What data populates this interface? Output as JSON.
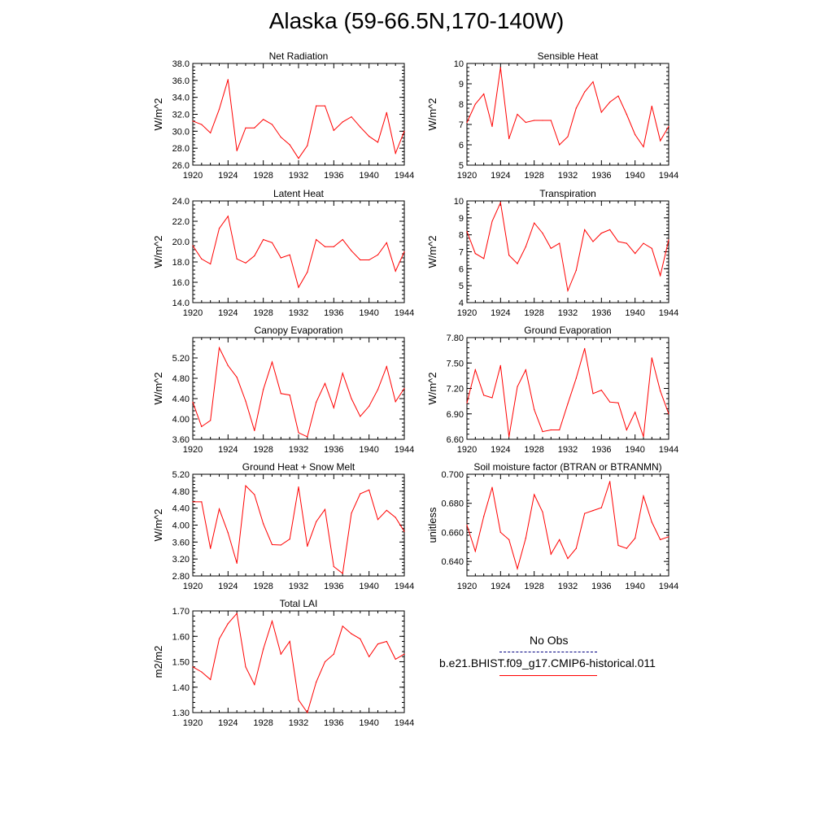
{
  "title": "Alaska (59-66.5N,170-140W)",
  "colors": {
    "series": "#ff0000",
    "obs": "#000080",
    "axis": "#000000"
  },
  "legend": {
    "obs_label": "No Obs",
    "model_label": "b.e21.BHIST.f09_g17.CMIP6-historical.011"
  },
  "chart_data": [
    {
      "type": "line",
      "title": "Net Radiation",
      "ylabel": "W/m^2",
      "xlim": [
        1920,
        1944
      ],
      "ylim": [
        26,
        38
      ],
      "xticks": [
        "1920",
        "1924",
        "1928",
        "1932",
        "1936",
        "1940",
        "1944"
      ],
      "yticks": [
        "26.0",
        "28.0",
        "30.0",
        "32.0",
        "34.0",
        "36.0",
        "38.0"
      ],
      "series": [
        {
          "x": [
            1920,
            1921,
            1922,
            1923,
            1924,
            1925,
            1926,
            1927,
            1928,
            1929,
            1930,
            1931,
            1932,
            1933,
            1934,
            1935,
            1936,
            1937,
            1938,
            1939,
            1940,
            1941,
            1942,
            1943,
            1944
          ],
          "values": [
            31.2,
            30.8,
            29.8,
            32.6,
            36.1,
            27.7,
            30.4,
            30.4,
            31.4,
            30.8,
            29.3,
            28.4,
            26.8,
            28.3,
            33.0,
            33.0,
            30.1,
            31.1,
            31.7,
            30.5,
            29.4,
            28.7,
            32.2,
            27.4,
            30.0
          ]
        }
      ]
    },
    {
      "type": "line",
      "title": "Sensible Heat",
      "ylabel": "W/m^2",
      "xlim": [
        1920,
        1944
      ],
      "ylim": [
        5,
        10
      ],
      "xticks": [
        "1920",
        "1924",
        "1928",
        "1932",
        "1936",
        "1940",
        "1944"
      ],
      "yticks": [
        "5",
        "6",
        "7",
        "8",
        "9",
        "10"
      ],
      "series": [
        {
          "x": [
            1920,
            1921,
            1922,
            1923,
            1924,
            1925,
            1926,
            1927,
            1928,
            1929,
            1930,
            1931,
            1932,
            1933,
            1934,
            1935,
            1936,
            1937,
            1938,
            1939,
            1940,
            1941,
            1942,
            1943,
            1944
          ],
          "values": [
            7.1,
            8.0,
            8.5,
            6.9,
            9.8,
            6.3,
            7.5,
            7.1,
            7.2,
            7.2,
            7.2,
            6.0,
            6.4,
            7.8,
            8.6,
            9.1,
            7.6,
            8.1,
            8.4,
            7.5,
            6.5,
            5.9,
            7.9,
            6.2,
            6.9
          ]
        }
      ]
    },
    {
      "type": "line",
      "title": "Latent Heat",
      "ylabel": "W/m^2",
      "xlim": [
        1920,
        1944
      ],
      "ylim": [
        14,
        24
      ],
      "xticks": [
        "1920",
        "1924",
        "1928",
        "1932",
        "1936",
        "1940",
        "1944"
      ],
      "yticks": [
        "14.0",
        "16.0",
        "18.0",
        "20.0",
        "22.0",
        "24.0"
      ],
      "series": [
        {
          "x": [
            1920,
            1921,
            1922,
            1923,
            1924,
            1925,
            1926,
            1927,
            1928,
            1929,
            1930,
            1931,
            1932,
            1933,
            1934,
            1935,
            1936,
            1937,
            1938,
            1939,
            1940,
            1941,
            1942,
            1943,
            1944
          ],
          "values": [
            19.6,
            18.3,
            17.8,
            21.3,
            22.5,
            18.3,
            17.9,
            18.6,
            20.2,
            19.9,
            18.4,
            18.7,
            15.5,
            17.0,
            20.2,
            19.5,
            19.5,
            20.2,
            19.1,
            18.2,
            18.2,
            18.7,
            19.9,
            17.1,
            19.0
          ]
        }
      ]
    },
    {
      "type": "line",
      "title": "Transpiration",
      "ylabel": "W/m^2",
      "xlim": [
        1920,
        1944
      ],
      "ylim": [
        4,
        10
      ],
      "xticks": [
        "1920",
        "1924",
        "1928",
        "1932",
        "1936",
        "1940",
        "1944"
      ],
      "yticks": [
        "4",
        "5",
        "6",
        "7",
        "8",
        "9",
        "10"
      ],
      "series": [
        {
          "x": [
            1920,
            1921,
            1922,
            1923,
            1924,
            1925,
            1926,
            1927,
            1928,
            1929,
            1930,
            1931,
            1932,
            1933,
            1934,
            1935,
            1936,
            1937,
            1938,
            1939,
            1940,
            1941,
            1942,
            1943,
            1944
          ],
          "values": [
            8.2,
            6.9,
            6.6,
            8.8,
            9.9,
            6.8,
            6.3,
            7.3,
            8.7,
            8.1,
            7.2,
            7.5,
            4.7,
            5.9,
            8.3,
            7.6,
            8.1,
            8.3,
            7.6,
            7.5,
            6.9,
            7.5,
            7.2,
            5.6,
            7.7
          ]
        }
      ]
    },
    {
      "type": "line",
      "title": "Canopy Evaporation",
      "ylabel": "W/m^2",
      "xlim": [
        1920,
        1944
      ],
      "ylim": [
        3.6,
        5.6
      ],
      "xticks": [
        "1920",
        "1924",
        "1928",
        "1932",
        "1936",
        "1940",
        "1944"
      ],
      "yticks": [
        "3.60",
        "4.00",
        "4.40",
        "4.80",
        "5.20"
      ],
      "series": [
        {
          "x": [
            1920,
            1921,
            1922,
            1923,
            1924,
            1925,
            1926,
            1927,
            1928,
            1929,
            1930,
            1931,
            1932,
            1933,
            1934,
            1935,
            1936,
            1937,
            1938,
            1939,
            1940,
            1941,
            1942,
            1943,
            1944
          ],
          "values": [
            4.33,
            3.85,
            3.97,
            5.4,
            5.05,
            4.82,
            4.35,
            3.77,
            4.58,
            5.12,
            4.5,
            4.47,
            3.73,
            3.65,
            4.33,
            4.7,
            4.22,
            4.9,
            4.4,
            4.05,
            4.25,
            4.58,
            5.03,
            4.34,
            4.6
          ]
        }
      ]
    },
    {
      "type": "line",
      "title": "Ground Evaporation",
      "ylabel": "W/m^2",
      "xlim": [
        1920,
        1944
      ],
      "ylim": [
        6.6,
        7.8
      ],
      "xticks": [
        "1920",
        "1924",
        "1928",
        "1932",
        "1936",
        "1940",
        "1944"
      ],
      "yticks": [
        "6.60",
        "6.90",
        "7.20",
        "7.50",
        "7.80"
      ],
      "series": [
        {
          "x": [
            1920,
            1921,
            1922,
            1923,
            1924,
            1925,
            1926,
            1927,
            1928,
            1929,
            1930,
            1931,
            1932,
            1933,
            1934,
            1935,
            1936,
            1937,
            1938,
            1939,
            1940,
            1941,
            1942,
            1943,
            1944
          ],
          "values": [
            7.03,
            7.42,
            7.12,
            7.09,
            7.47,
            6.63,
            7.22,
            7.42,
            6.95,
            6.69,
            6.71,
            6.71,
            7.02,
            7.32,
            7.67,
            7.14,
            7.18,
            7.04,
            7.03,
            6.71,
            6.92,
            6.63,
            7.56,
            7.17,
            6.9
          ]
        }
      ]
    },
    {
      "type": "line",
      "title": "Ground Heat + Snow Melt",
      "ylabel": "W/m^2",
      "xlim": [
        1920,
        1944
      ],
      "ylim": [
        2.8,
        5.2
      ],
      "xticks": [
        "1920",
        "1924",
        "1928",
        "1932",
        "1936",
        "1940",
        "1944"
      ],
      "yticks": [
        "2.80",
        "3.20",
        "3.60",
        "4.00",
        "4.40",
        "4.80",
        "5.20"
      ],
      "series": [
        {
          "x": [
            1920,
            1921,
            1922,
            1923,
            1924,
            1925,
            1926,
            1927,
            1928,
            1929,
            1930,
            1931,
            1932,
            1933,
            1934,
            1935,
            1936,
            1937,
            1938,
            1939,
            1940,
            1941,
            1942,
            1943,
            1944
          ],
          "values": [
            4.55,
            4.55,
            3.45,
            4.38,
            3.82,
            3.1,
            4.93,
            4.72,
            4.03,
            3.54,
            3.53,
            3.67,
            4.9,
            3.5,
            4.08,
            4.37,
            3.02,
            2.86,
            4.28,
            4.74,
            4.83,
            4.13,
            4.35,
            4.18,
            3.85
          ]
        }
      ]
    },
    {
      "type": "line",
      "title": "Soil moisture factor (BTRAN or BTRANMN)",
      "ylabel": "unitless",
      "xlim": [
        1920,
        1944
      ],
      "ylim": [
        0.63,
        0.7
      ],
      "xticks": [
        "1920",
        "1924",
        "1928",
        "1932",
        "1936",
        "1940",
        "1944"
      ],
      "yticks": [
        "0.640",
        "0.660",
        "0.680",
        "0.700"
      ],
      "series": [
        {
          "x": [
            1920,
            1921,
            1922,
            1923,
            1924,
            1925,
            1926,
            1927,
            1928,
            1929,
            1930,
            1931,
            1932,
            1933,
            1934,
            1935,
            1936,
            1937,
            1938,
            1939,
            1940,
            1941,
            1942,
            1943,
            1944
          ],
          "values": [
            0.665,
            0.647,
            0.671,
            0.691,
            0.66,
            0.655,
            0.635,
            0.656,
            0.686,
            0.674,
            0.645,
            0.655,
            0.642,
            0.649,
            0.673,
            0.675,
            0.677,
            0.695,
            0.651,
            0.649,
            0.656,
            0.685,
            0.667,
            0.655,
            0.657
          ]
        }
      ]
    },
    {
      "type": "line",
      "title": "Total LAI",
      "ylabel": "m2/m2",
      "xlim": [
        1920,
        1944
      ],
      "ylim": [
        1.3,
        1.7
      ],
      "xticks": [
        "1920",
        "1924",
        "1928",
        "1932",
        "1936",
        "1940",
        "1944"
      ],
      "yticks": [
        "1.30",
        "1.40",
        "1.50",
        "1.60",
        "1.70"
      ],
      "series": [
        {
          "x": [
            1920,
            1921,
            1922,
            1923,
            1924,
            1925,
            1926,
            1927,
            1928,
            1929,
            1930,
            1931,
            1932,
            1933,
            1934,
            1935,
            1936,
            1937,
            1938,
            1939,
            1940,
            1941,
            1942,
            1943,
            1944
          ],
          "values": [
            1.48,
            1.46,
            1.43,
            1.59,
            1.65,
            1.69,
            1.48,
            1.41,
            1.55,
            1.66,
            1.53,
            1.58,
            1.35,
            1.3,
            1.42,
            1.5,
            1.53,
            1.64,
            1.61,
            1.59,
            1.52,
            1.57,
            1.58,
            1.51,
            1.53
          ]
        }
      ]
    }
  ]
}
